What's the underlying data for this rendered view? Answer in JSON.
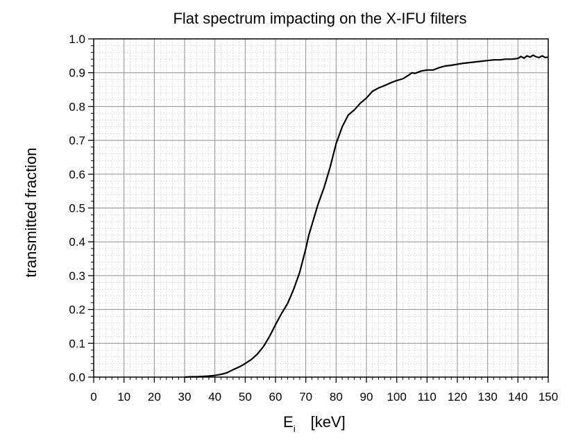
{
  "chart_data": {
    "type": "line",
    "title": "Flat spectrum impacting on the X-IFU filters",
    "xlabel_main": "E",
    "xlabel_sub": "i",
    "xlabel_unit": "[keV]",
    "ylabel": "transmitted fraction",
    "xlim": [
      0,
      150
    ],
    "ylim": [
      0.0,
      1.0
    ],
    "xticks": [
      0,
      10,
      20,
      30,
      40,
      50,
      60,
      70,
      80,
      90,
      100,
      110,
      120,
      130,
      140,
      150
    ],
    "xtick_labels": [
      "0",
      "10",
      "20",
      "30",
      "40",
      "50",
      "60",
      "70",
      "80",
      "90",
      "100",
      "110",
      "120",
      "130",
      "140",
      "150"
    ],
    "yticks": [
      0.0,
      0.1,
      0.2,
      0.3,
      0.4,
      0.5,
      0.6,
      0.7,
      0.8,
      0.9,
      1.0
    ],
    "ytick_labels": [
      "0.0",
      "0.1",
      "0.2",
      "0.3",
      "0.4",
      "0.5",
      "0.6",
      "0.7",
      "0.8",
      "0.9",
      "1.0"
    ],
    "grid": true,
    "series": [
      {
        "name": "transmitted fraction",
        "x": [
          30,
          32,
          34,
          36,
          38,
          40,
          42,
          44,
          46,
          48,
          50,
          52,
          54,
          56,
          58,
          60,
          62,
          64,
          66,
          68,
          70,
          71,
          72,
          74,
          76,
          78,
          80,
          82,
          84,
          86,
          88,
          90,
          92,
          94,
          96,
          98,
          100,
          102,
          104,
          105,
          106,
          108,
          110,
          112,
          114,
          116,
          118,
          120,
          122,
          124,
          126,
          128,
          130,
          132,
          134,
          136,
          138,
          140,
          141,
          142,
          143,
          144,
          145,
          146,
          147,
          148,
          149,
          150
        ],
        "y": [
          0.0,
          0.001,
          0.001,
          0.002,
          0.003,
          0.005,
          0.008,
          0.013,
          0.022,
          0.03,
          0.04,
          0.052,
          0.068,
          0.09,
          0.12,
          0.155,
          0.188,
          0.218,
          0.26,
          0.31,
          0.38,
          0.42,
          0.45,
          0.51,
          0.56,
          0.62,
          0.69,
          0.74,
          0.775,
          0.79,
          0.81,
          0.825,
          0.845,
          0.855,
          0.862,
          0.87,
          0.877,
          0.882,
          0.893,
          0.9,
          0.898,
          0.905,
          0.908,
          0.908,
          0.915,
          0.92,
          0.922,
          0.925,
          0.928,
          0.93,
          0.932,
          0.934,
          0.936,
          0.938,
          0.938,
          0.94,
          0.94,
          0.942,
          0.948,
          0.943,
          0.95,
          0.946,
          0.952,
          0.947,
          0.945,
          0.95,
          0.945,
          0.946
        ]
      }
    ]
  }
}
